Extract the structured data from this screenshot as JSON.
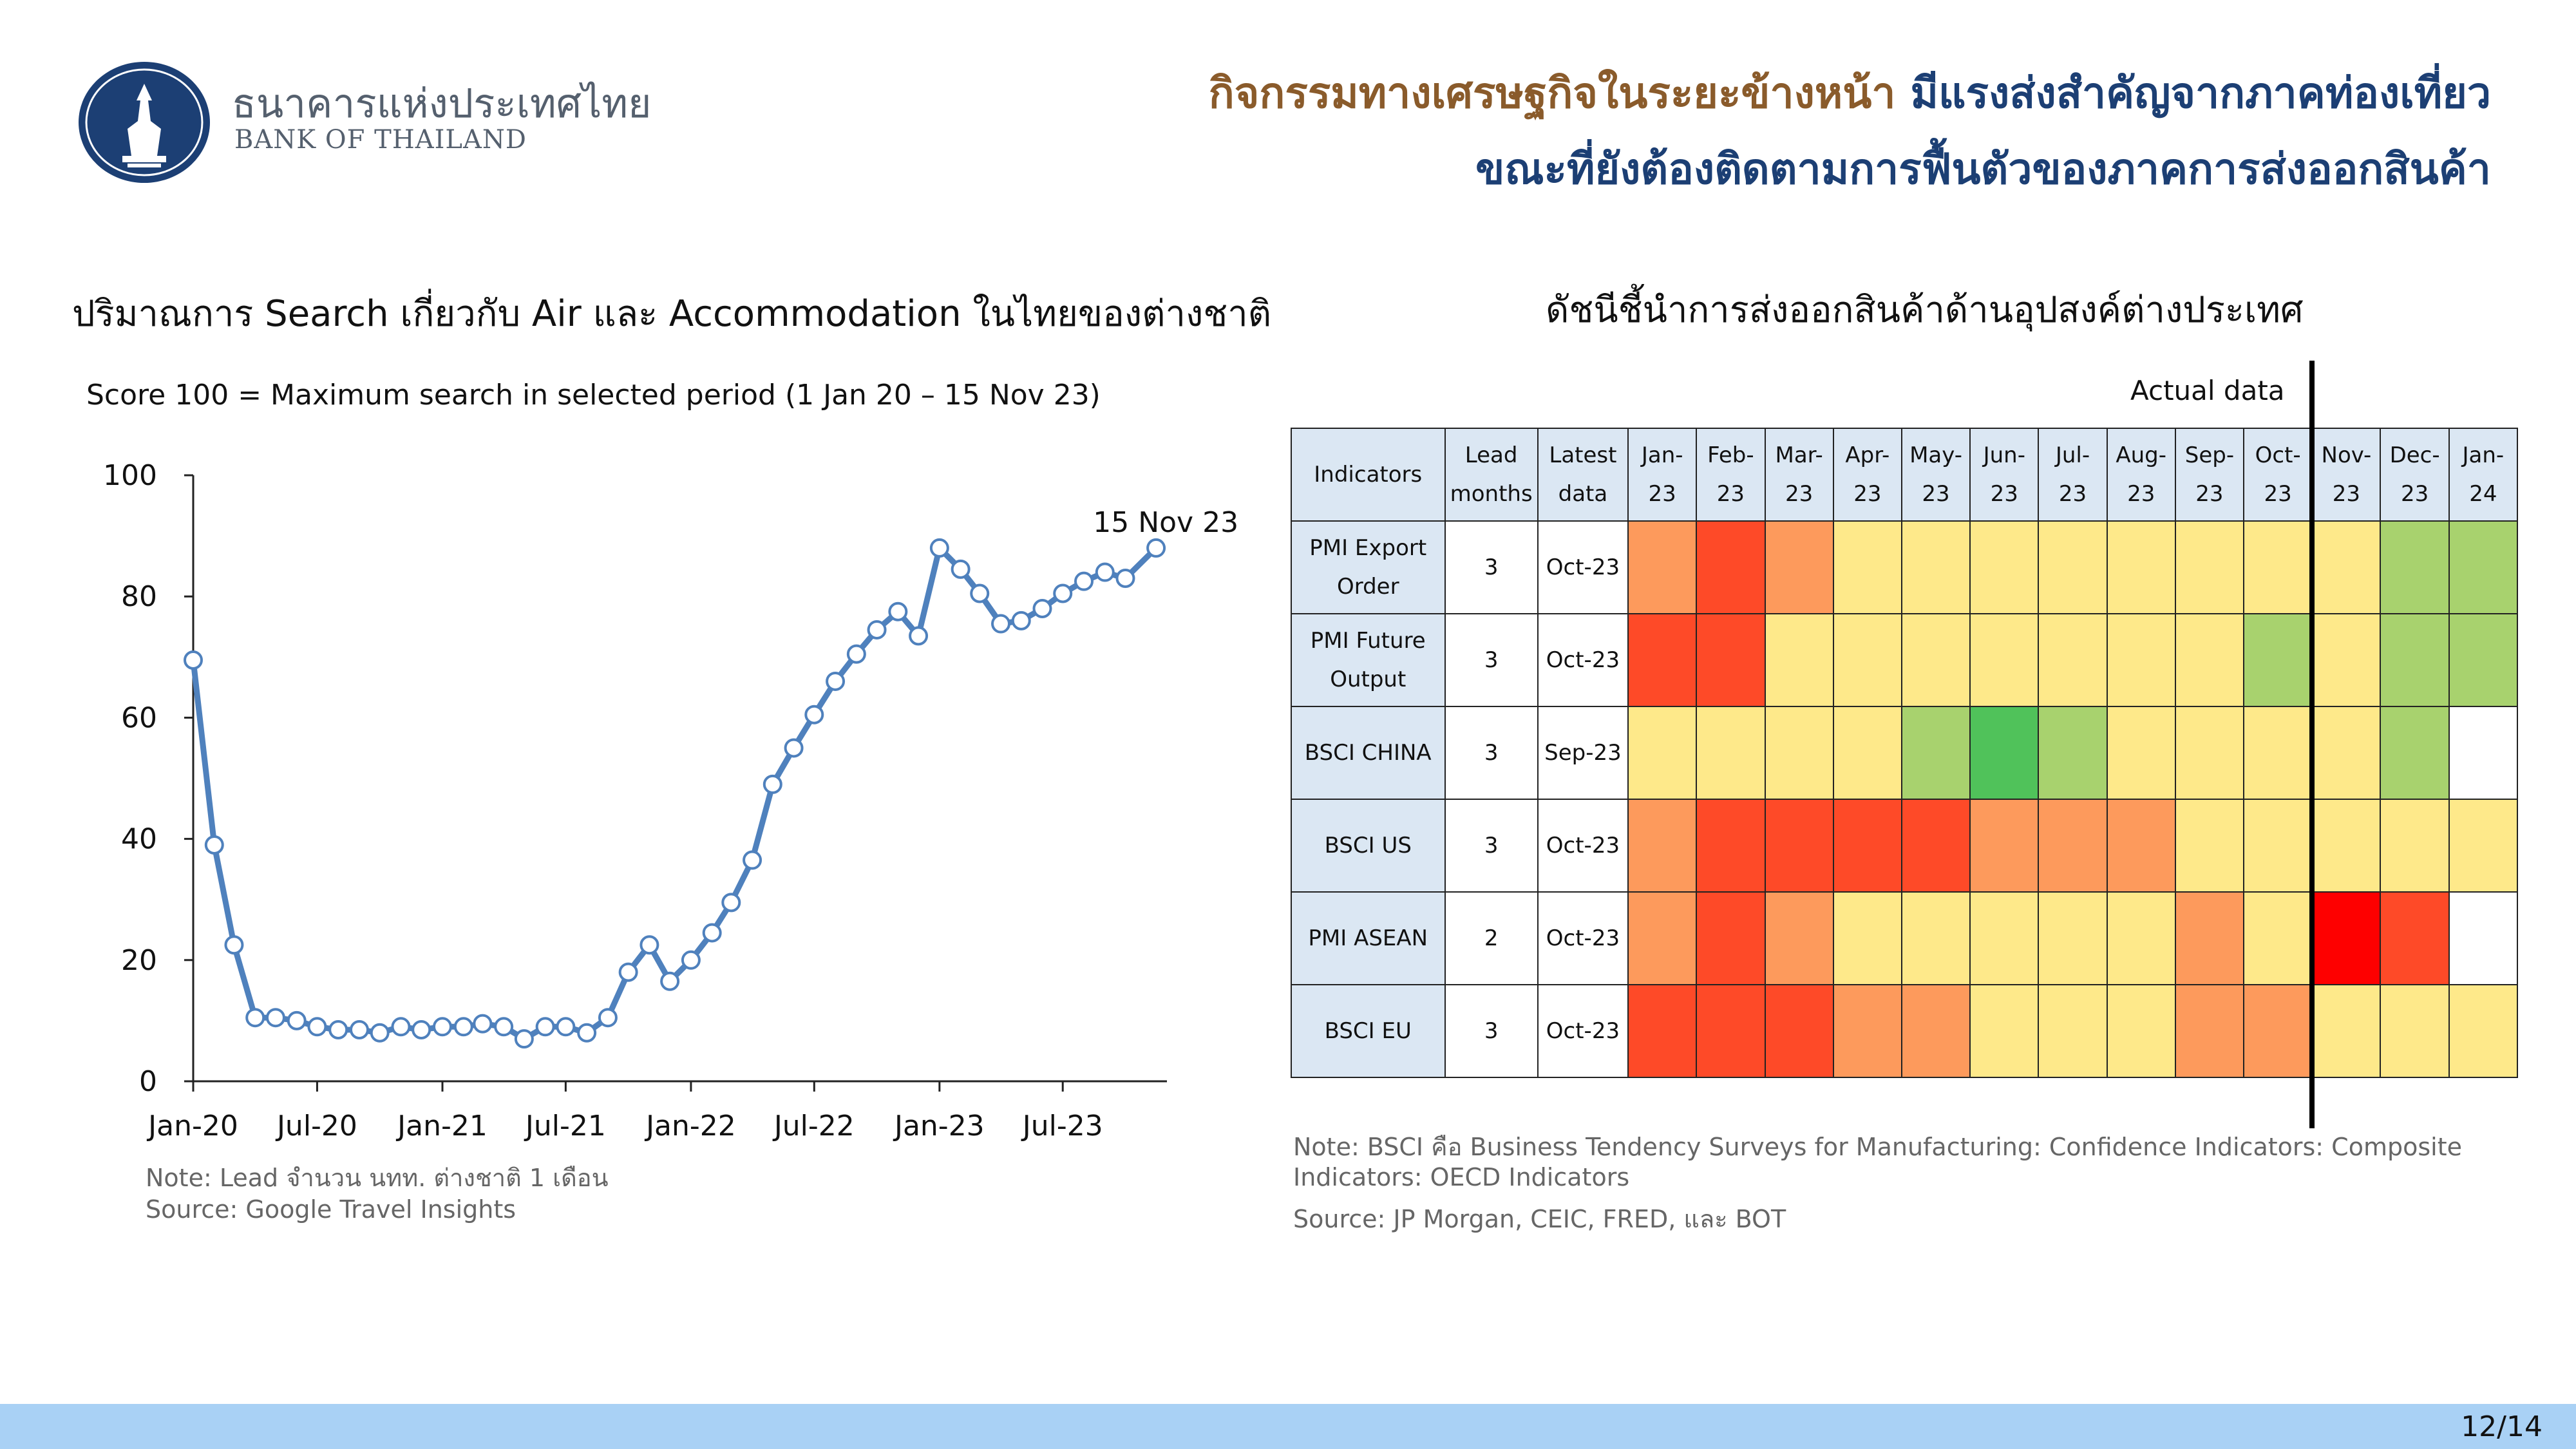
{
  "header": {
    "bank_name_th": "ธนาคารแห่งประเทศไทย",
    "bank_name_en": "BANK OF THAILAND",
    "headline_part1": "กิจกรรมทางเศรษฐกิจในระยะข้างหน้า",
    "headline_part2": " มีแรงส่งสำคัญจากภาคท่องเที่ยว",
    "headline_line2": "ขณะที่ยังต้องติดตามการฟื้นตัวของภาคการส่งออกสินค้า"
  },
  "left_chart": {
    "title": "ปริมาณการ Search เกี่ยวกับ Air และ Accommodation ในไทยของต่างชาติ",
    "subtitle": "Score 100 = Maximum search in selected period (1 Jan 20 – 15 Nov 23)",
    "annotation": "15 Nov 23",
    "note": "Note: Lead จำนวน นทท. ต่างชาติ 1 เดือน",
    "source": "Source: Google Travel Insights"
  },
  "right_chart": {
    "title": "ดัชนีชี้นำการส่งออกสินค้าด้านอุปสงค์ต่างประเทศ",
    "actual_label": "Actual data",
    "note_line1": "Note: BSCI คือ Business Tendency Surveys for Manufacturing: Confidence Indicators: Composite",
    "note_line2": "Indicators: OECD Indicators",
    "source": "Source: JP Morgan, CEIC, FRED, และ BOT"
  },
  "colors": {
    "line": "#4f81bd",
    "marker_fill": "#ffffff",
    "header_blue": "#dbe7f3",
    "corner_yellow": "#f6ca43",
    "headline_brown": "#8a5b2b",
    "headline_navy": "#1c3f74",
    "footer_bar": "#a9d1f5",
    "heat": {
      "dark_red": "#fe0000",
      "red": "#fe4a28",
      "orange": "#fd9a5c",
      "yellow": "#fee98a",
      "light_green": "#a8d26e",
      "green": "#50c25a",
      "white": "#ffffff"
    }
  },
  "chart_data": [
    {
      "type": "line",
      "x": [
        "2020-01-01",
        "2020-02-01",
        "2020-03-01",
        "2020-04-01",
        "2020-05-01",
        "2020-06-01",
        "2020-07-01",
        "2020-08-01",
        "2020-09-01",
        "2020-10-01",
        "2020-11-01",
        "2020-12-01",
        "2021-01-01",
        "2021-02-01",
        "2021-03-01",
        "2021-04-01",
        "2021-05-01",
        "2021-06-01",
        "2021-07-01",
        "2021-08-01",
        "2021-09-01",
        "2021-10-01",
        "2021-11-01",
        "2021-12-01",
        "2022-01-01",
        "2022-02-01",
        "2022-03-01",
        "2022-04-01",
        "2022-05-01",
        "2022-06-01",
        "2022-07-01",
        "2022-08-01",
        "2022-09-01",
        "2022-10-01",
        "2022-11-01",
        "2022-12-01",
        "2023-01-01",
        "2023-02-01",
        "2023-03-01",
        "2023-04-01",
        "2023-05-01",
        "2023-06-01",
        "2023-07-01",
        "2023-08-01",
        "2023-09-01",
        "2023-10-01",
        "2023-11-15"
      ],
      "series": [
        {
          "values": [
            69.5,
            39,
            22.5,
            10.5,
            10.5,
            10,
            9,
            8.5,
            8.5,
            8,
            9,
            8.5,
            9,
            9,
            9.5,
            9,
            7,
            9,
            9,
            8,
            10.5,
            18,
            22.5,
            16.5,
            20,
            24.5,
            29.5,
            36.5,
            49,
            55,
            60.5,
            66,
            70.5,
            74.5,
            77.5,
            73.5,
            88,
            84.5,
            80.5,
            75.5,
            76,
            78,
            80.5,
            82.5,
            84,
            83,
            88
          ]
        }
      ],
      "xtick_labels": [
        "Jan-20",
        "Jul-20",
        "Jan-21",
        "Jul-21",
        "Jan-22",
        "Jul-22",
        "Jan-23",
        "Jul-23"
      ],
      "xtick_dates": [
        "2020-01-01",
        "2020-07-01",
        "2021-01-01",
        "2021-07-01",
        "2022-01-01",
        "2022-07-01",
        "2023-01-01",
        "2023-07-01"
      ],
      "ytick_labels": [
        "0",
        "20",
        "40",
        "60",
        "80",
        "100"
      ],
      "ylim": [
        0,
        100
      ],
      "grid": false,
      "legend": "none"
    },
    {
      "type": "heatmap",
      "corner_label": "Indicators",
      "columns": [
        "Lead months",
        "Latest data",
        "Jan-23",
        "Feb-23",
        "Mar-23",
        "Apr-23",
        "May-23",
        "Jun-23",
        "Jul-23",
        "Aug-23",
        "Sep-23",
        "Oct-23",
        "Nov-23",
        "Dec-23",
        "Jan-24"
      ],
      "actual_data_boundary_after": "Oct-23",
      "rows": [
        {
          "indicator": "PMI Export Order",
          "lead_months": "3",
          "latest_data": "Oct-23",
          "cells": [
            "orange",
            "red",
            "orange",
            "yellow",
            "yellow",
            "yellow",
            "yellow",
            "yellow",
            "yellow",
            "yellow",
            "yellow",
            "light_green",
            "light_green"
          ]
        },
        {
          "indicator": "PMI Future Output",
          "lead_months": "3",
          "latest_data": "Oct-23",
          "cells": [
            "red",
            "red",
            "yellow",
            "yellow",
            "yellow",
            "yellow",
            "yellow",
            "yellow",
            "yellow",
            "light_green",
            "yellow",
            "light_green",
            "light_green"
          ]
        },
        {
          "indicator": "BSCI CHINA",
          "lead_months": "3",
          "latest_data": "Sep-23",
          "cells": [
            "yellow",
            "yellow",
            "yellow",
            "yellow",
            "light_green",
            "green",
            "light_green",
            "yellow",
            "yellow",
            "yellow",
            "yellow",
            "light_green",
            "white"
          ]
        },
        {
          "indicator": "BSCI US",
          "lead_months": "3",
          "latest_data": "Oct-23",
          "cells": [
            "orange",
            "red",
            "red",
            "red",
            "red",
            "orange",
            "orange",
            "orange",
            "yellow",
            "yellow",
            "yellow",
            "yellow",
            "yellow"
          ]
        },
        {
          "indicator": "PMI ASEAN",
          "lead_months": "2",
          "latest_data": "Oct-23",
          "cells": [
            "orange",
            "red",
            "orange",
            "yellow",
            "yellow",
            "yellow",
            "yellow",
            "yellow",
            "orange",
            "yellow",
            "dark_red",
            "red",
            "white"
          ]
        },
        {
          "indicator": "BSCI EU",
          "lead_months": "3",
          "latest_data": "Oct-23",
          "cells": [
            "red",
            "red",
            "red",
            "orange",
            "orange",
            "yellow",
            "yellow",
            "yellow",
            "orange",
            "orange",
            "yellow",
            "yellow",
            "yellow"
          ]
        }
      ]
    }
  ],
  "footer": {
    "page": "12/14"
  }
}
